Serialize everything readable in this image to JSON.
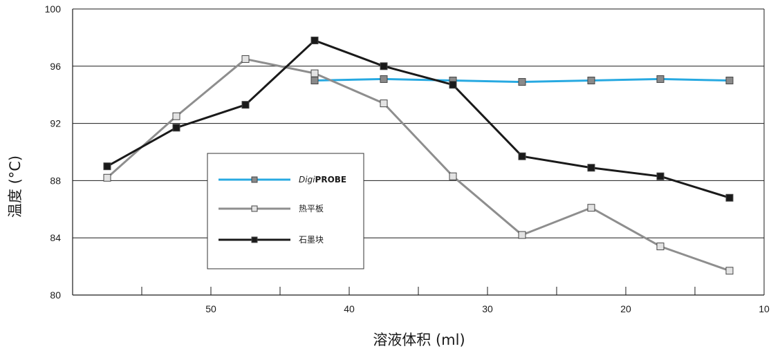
{
  "chart_data": {
    "type": "line",
    "xlabel": "溶液体积 (ml)",
    "ylabel": "温度 (°C)",
    "xlim": [
      60,
      10
    ],
    "ylim": [
      80,
      100
    ],
    "x_tick_labels": [
      "50",
      "40",
      "30",
      "20",
      "10"
    ],
    "y_tick_labels": [
      "100",
      "96",
      "92",
      "88",
      "84",
      "80"
    ],
    "grid": "horizontal",
    "legend_position": "center-left",
    "series": [
      {
        "name_prefix": "Digi",
        "name_suffix": "PROBE",
        "color": "#27a9e1",
        "marker_fill": "#8a8a8a",
        "x": [
          42.5,
          37.5,
          32.5,
          27.5,
          22.5,
          17.5,
          12.5
        ],
        "values": [
          95.0,
          95.1,
          95.0,
          94.9,
          95.0,
          95.1,
          95.0
        ]
      },
      {
        "name": "热平板",
        "color": "#8e8e8e",
        "marker_fill": "#e3e3e3",
        "x": [
          57.5,
          52.5,
          47.5,
          42.5,
          37.5,
          32.5,
          27.5,
          22.5,
          17.5,
          12.5
        ],
        "values": [
          88.2,
          92.5,
          96.5,
          95.5,
          93.4,
          88.3,
          84.2,
          86.1,
          83.4,
          81.7
        ]
      },
      {
        "name": "石墨块",
        "color": "#1a1a1a",
        "marker_fill": "#1a1a1a",
        "x": [
          57.5,
          52.5,
          47.5,
          42.5,
          37.5,
          32.5,
          27.5,
          22.5,
          17.5,
          12.5
        ],
        "values": [
          89.0,
          91.7,
          93.3,
          97.8,
          96.0,
          94.7,
          89.7,
          88.9,
          88.3,
          86.8
        ]
      }
    ]
  }
}
